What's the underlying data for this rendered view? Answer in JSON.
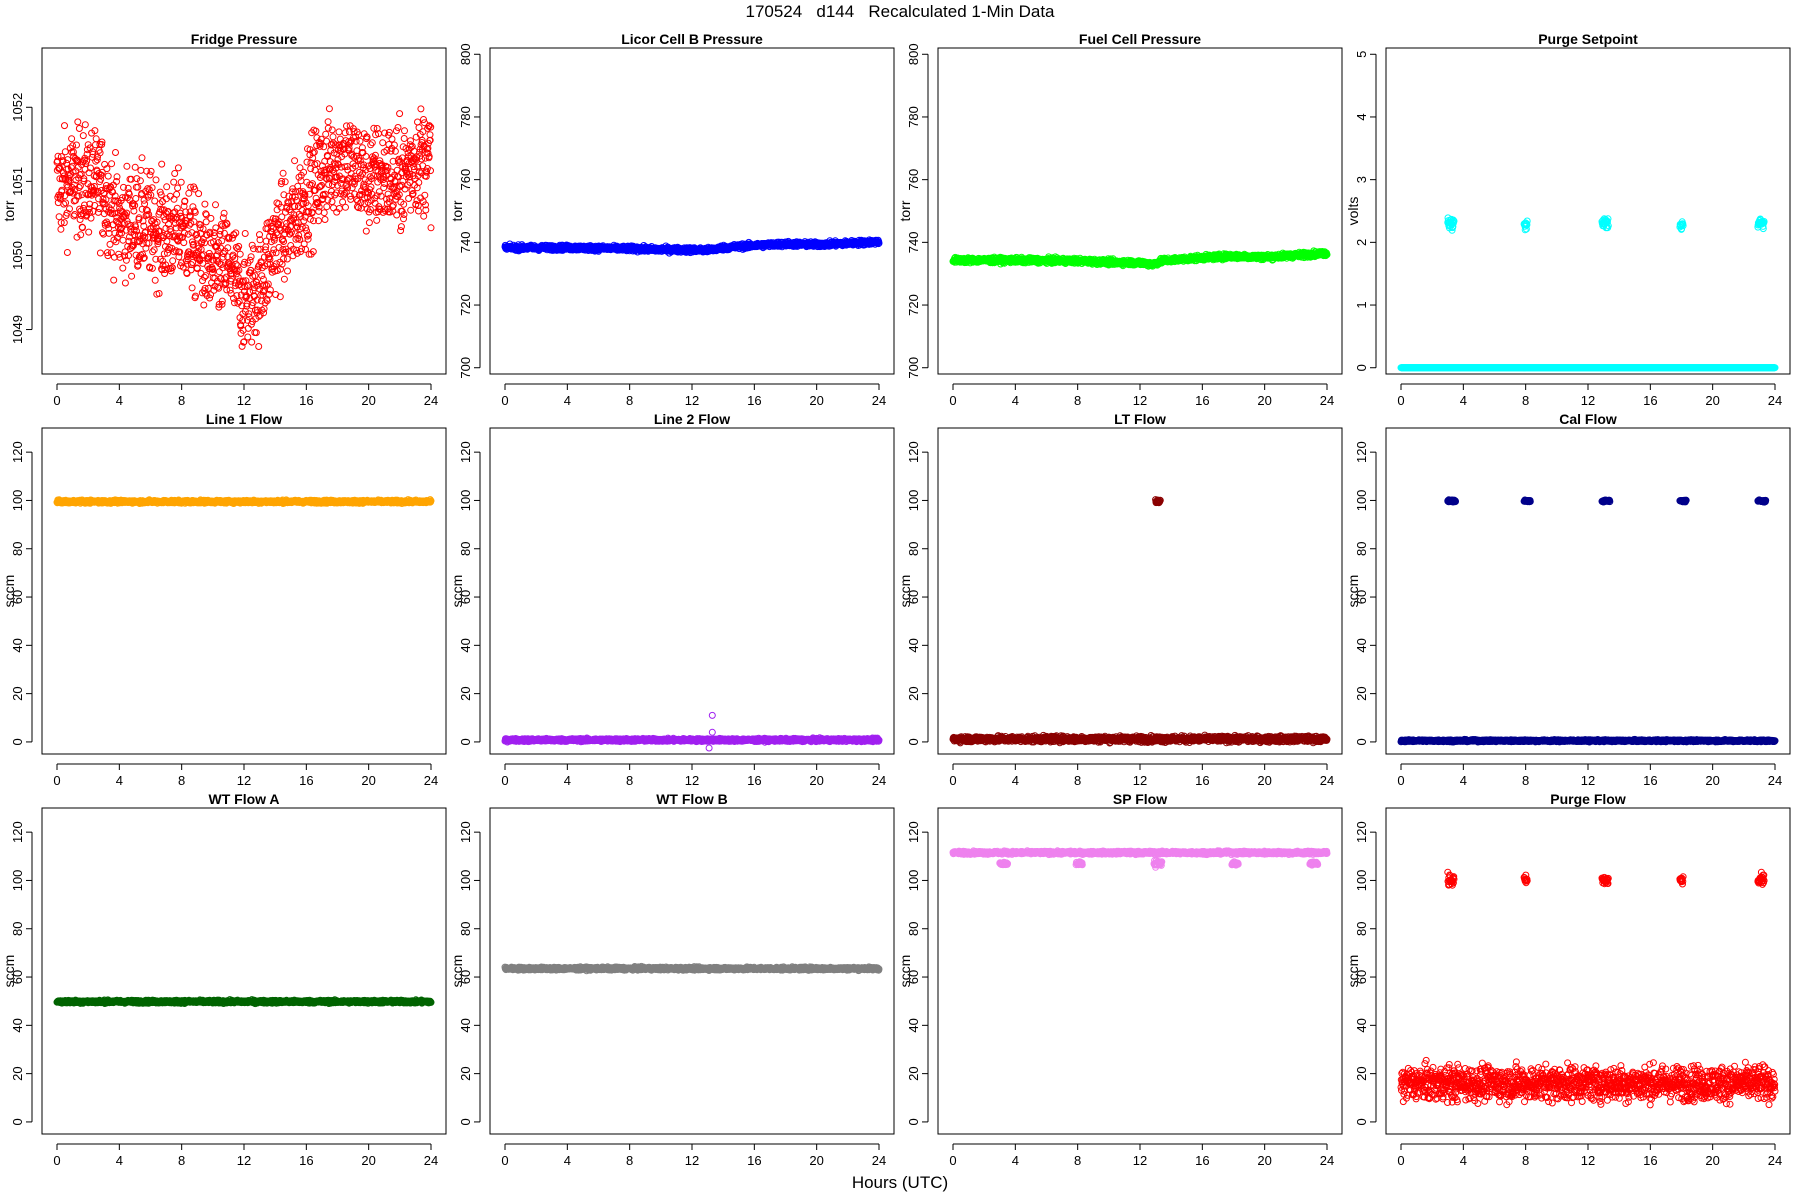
{
  "figure": {
    "title": "170524   d144   Recalculated 1-Min Data",
    "xlabel": "Hours (UTC)"
  },
  "chart_data": [
    {
      "type": "scatter",
      "title": "Fridge Pressure",
      "ylabel": "torr",
      "color": "#ff0000",
      "marker": "open-circle",
      "xlim": [
        0,
        24
      ],
      "xticks": [
        0,
        4,
        8,
        12,
        16,
        20,
        24
      ],
      "ylim": [
        1048.4,
        1052.8
      ],
      "yticks": [
        1049,
        1050,
        1051,
        1052
      ],
      "series": [
        {
          "x": [
            0,
            1,
            2,
            3,
            4,
            5,
            6,
            7,
            8,
            9,
            10,
            11,
            12,
            13,
            14,
            15,
            16,
            17,
            18,
            19,
            20,
            21,
            22,
            23,
            24
          ],
          "y": [
            1050.9,
            1051.0,
            1051.0,
            1050.9,
            1050.4,
            1050.5,
            1050.4,
            1050.3,
            1050.4,
            1050.1,
            1049.8,
            1049.9,
            1049.4,
            1049.6,
            1050.2,
            1050.4,
            1050.8,
            1051.1,
            1051.3,
            1051.2,
            1051.0,
            1051.1,
            1051.0,
            1051.3,
            1051.3
          ],
          "spread": 0.35
        }
      ]
    },
    {
      "type": "scatter",
      "title": "Licor Cell B Pressure",
      "ylabel": "torr",
      "color": "#0000ff",
      "marker": "open-circle",
      "xlim": [
        0,
        24
      ],
      "xticks": [
        0,
        4,
        8,
        12,
        16,
        20,
        24
      ],
      "ylim": [
        698,
        802
      ],
      "yticks": [
        700,
        720,
        740,
        760,
        780,
        800
      ],
      "series": [
        {
          "x": [
            0,
            4,
            8,
            10,
            12,
            13,
            14,
            16,
            18,
            20,
            22,
            24
          ],
          "y": [
            738.3,
            738.3,
            738.0,
            737.7,
            737.6,
            737.5,
            738.3,
            739.0,
            739.5,
            739.3,
            739.7,
            740.2
          ],
          "spread": 0.4
        }
      ]
    },
    {
      "type": "scatter",
      "title": "Fuel Cell Pressure",
      "ylabel": "torr",
      "color": "#00ff00",
      "marker": "open-circle",
      "xlim": [
        0,
        24
      ],
      "xticks": [
        0,
        4,
        8,
        12,
        16,
        20,
        24
      ],
      "ylim": [
        698,
        802
      ],
      "yticks": [
        700,
        720,
        740,
        760,
        780,
        800
      ],
      "series": [
        {
          "x": [
            0,
            4,
            8,
            10,
            12,
            12.8,
            13.5,
            16,
            18,
            20,
            22,
            24
          ],
          "y": [
            734.3,
            734.3,
            734.1,
            733.7,
            733.5,
            733.0,
            734.2,
            735.1,
            735.6,
            735.3,
            735.9,
            736.6
          ],
          "spread": 0.4
        }
      ]
    },
    {
      "type": "scatter",
      "title": "Purge Setpoint",
      "ylabel": "volts",
      "color": "#00ffff",
      "marker": "open-circle",
      "xlim": [
        0,
        24
      ],
      "xticks": [
        0,
        4,
        8,
        12,
        16,
        20,
        24
      ],
      "ylim": [
        -0.1,
        5.1
      ],
      "yticks": [
        0,
        1,
        2,
        3,
        4,
        5
      ],
      "series": [
        {
          "x": [
            0,
            24
          ],
          "y": [
            0.0,
            0.0
          ],
          "spread": 0.0
        },
        {
          "x": [
            3.0,
            3.4
          ],
          "y": [
            2.3,
            2.3
          ],
          "spread": 0.05
        },
        {
          "x": [
            7.9,
            8.1
          ],
          "y": [
            2.27,
            2.27
          ],
          "spread": 0.04
        },
        {
          "x": [
            12.9,
            13.3
          ],
          "y": [
            2.3,
            2.3
          ],
          "spread": 0.05
        },
        {
          "x": [
            17.9,
            18.1
          ],
          "y": [
            2.28,
            2.28
          ],
          "spread": 0.04
        },
        {
          "x": [
            22.9,
            23.3
          ],
          "y": [
            2.3,
            2.3
          ],
          "spread": 0.05
        }
      ]
    },
    {
      "type": "scatter",
      "title": "Line 1 Flow",
      "ylabel": "sccm",
      "color": "#ffa500",
      "marker": "open-circle",
      "xlim": [
        0,
        24
      ],
      "xticks": [
        0,
        4,
        8,
        12,
        16,
        20,
        24
      ],
      "ylim": [
        -5,
        130
      ],
      "yticks": [
        0,
        20,
        40,
        60,
        80,
        100,
        120
      ],
      "series": [
        {
          "x": [
            0,
            24
          ],
          "y": [
            99.5,
            99.5
          ],
          "spread": 0.3
        }
      ]
    },
    {
      "type": "scatter",
      "title": "Line 2 Flow",
      "ylabel": "sccm",
      "color": "#a020f0",
      "marker": "open-circle",
      "xlim": [
        0,
        24
      ],
      "xticks": [
        0,
        4,
        8,
        12,
        16,
        20,
        24
      ],
      "ylim": [
        -5,
        130
      ],
      "yticks": [
        0,
        20,
        40,
        60,
        80,
        100,
        120
      ],
      "series": [
        {
          "x": [
            0,
            24
          ],
          "y": [
            0.8,
            0.8
          ],
          "spread": 0.3
        },
        {
          "x": [
            13.3,
            13.3
          ],
          "y": [
            11.0,
            11.0
          ],
          "spread": 0.0
        },
        {
          "x": [
            13.3,
            13.3
          ],
          "y": [
            4.0,
            4.0
          ],
          "spread": 0.0
        },
        {
          "x": [
            13.1,
            13.1
          ],
          "y": [
            -2.5,
            -2.5
          ],
          "spread": 0.0
        }
      ]
    },
    {
      "type": "scatter",
      "title": "LT Flow",
      "ylabel": "sccm",
      "color": "#8b0000",
      "marker": "open-circle",
      "xlim": [
        0,
        24
      ],
      "xticks": [
        0,
        4,
        8,
        12,
        16,
        20,
        24
      ],
      "ylim": [
        -5,
        130
      ],
      "yticks": [
        0,
        20,
        40,
        60,
        80,
        100,
        120
      ],
      "series": [
        {
          "x": [
            0,
            24
          ],
          "y": [
            1.2,
            1.2
          ],
          "spread": 0.6
        },
        {
          "x": [
            13.0,
            13.3
          ],
          "y": [
            99.5,
            99.5
          ],
          "spread": 0.4
        }
      ]
    },
    {
      "type": "scatter",
      "title": "Cal Flow",
      "ylabel": "sccm",
      "color": "#00008b",
      "marker": "open-circle",
      "xlim": [
        0,
        24
      ],
      "xticks": [
        0,
        4,
        8,
        12,
        16,
        20,
        24
      ],
      "ylim": [
        -5,
        130
      ],
      "yticks": [
        0,
        20,
        40,
        60,
        80,
        100,
        120
      ],
      "series": [
        {
          "x": [
            0,
            24
          ],
          "y": [
            0.5,
            0.5
          ],
          "spread": 0.2
        },
        {
          "x": [
            3.0,
            3.5
          ],
          "y": [
            99.8,
            99.8
          ],
          "spread": 0.2
        },
        {
          "x": [
            7.9,
            8.3
          ],
          "y": [
            99.8,
            99.8
          ],
          "spread": 0.2
        },
        {
          "x": [
            12.9,
            13.4
          ],
          "y": [
            99.8,
            99.8
          ],
          "spread": 0.2
        },
        {
          "x": [
            17.9,
            18.3
          ],
          "y": [
            99.8,
            99.8
          ],
          "spread": 0.2
        },
        {
          "x": [
            22.9,
            23.4
          ],
          "y": [
            99.8,
            99.8
          ],
          "spread": 0.2
        }
      ]
    },
    {
      "type": "scatter",
      "title": "WT Flow A",
      "ylabel": "sccm",
      "color": "#006400",
      "marker": "open-circle",
      "xlim": [
        0,
        24
      ],
      "xticks": [
        0,
        4,
        8,
        12,
        16,
        20,
        24
      ],
      "ylim": [
        -5,
        130
      ],
      "yticks": [
        0,
        20,
        40,
        60,
        80,
        100,
        120
      ],
      "series": [
        {
          "x": [
            0,
            24
          ],
          "y": [
            49.8,
            49.8
          ],
          "spread": 0.3
        }
      ]
    },
    {
      "type": "scatter",
      "title": "WT Flow B",
      "ylabel": "sccm",
      "color": "#808080",
      "marker": "open-circle",
      "xlim": [
        0,
        24
      ],
      "xticks": [
        0,
        4,
        8,
        12,
        16,
        20,
        24
      ],
      "ylim": [
        -5,
        130
      ],
      "yticks": [
        0,
        20,
        40,
        60,
        80,
        100,
        120
      ],
      "series": [
        {
          "x": [
            0,
            24
          ],
          "y": [
            63.5,
            63.5
          ],
          "spread": 0.3
        }
      ]
    },
    {
      "type": "scatter",
      "title": "SP Flow",
      "ylabel": "sccm",
      "color": "#ee82ee",
      "marker": "open-circle",
      "xlim": [
        0,
        24
      ],
      "xticks": [
        0,
        4,
        8,
        12,
        16,
        20,
        24
      ],
      "ylim": [
        -5,
        130
      ],
      "yticks": [
        0,
        20,
        40,
        60,
        80,
        100,
        120
      ],
      "series": [
        {
          "x": [
            0,
            24
          ],
          "y": [
            111.5,
            111.5
          ],
          "spread": 0.3
        },
        {
          "x": [
            3.0,
            3.5
          ],
          "y": [
            107.0,
            107.0
          ],
          "spread": 0.3
        },
        {
          "x": [
            7.9,
            8.3
          ],
          "y": [
            107.0,
            107.0
          ],
          "spread": 0.3
        },
        {
          "x": [
            12.9,
            13.4
          ],
          "y": [
            107.0,
            107.0
          ],
          "spread": 0.6
        },
        {
          "x": [
            17.9,
            18.3
          ],
          "y": [
            107.0,
            107.0
          ],
          "spread": 0.3
        },
        {
          "x": [
            22.9,
            23.4
          ],
          "y": [
            107.0,
            107.0
          ],
          "spread": 0.3
        }
      ]
    },
    {
      "type": "scatter",
      "title": "Purge Flow",
      "ylabel": "sccm",
      "color": "#ff0000",
      "marker": "open-circle",
      "xlim": [
        0,
        24
      ],
      "xticks": [
        0,
        4,
        8,
        12,
        16,
        20,
        24
      ],
      "ylim": [
        -5,
        130
      ],
      "yticks": [
        0,
        20,
        40,
        60,
        80,
        100,
        120
      ],
      "series": [
        {
          "x": [
            0,
            24
          ],
          "y": [
            16.0,
            16.0
          ],
          "spread": 3.5
        },
        {
          "x": [
            3.0,
            3.4
          ],
          "y": [
            100.0,
            100.0
          ],
          "spread": 1.2
        },
        {
          "x": [
            7.9,
            8.1
          ],
          "y": [
            100.0,
            100.0
          ],
          "spread": 1.0
        },
        {
          "x": [
            12.9,
            13.3
          ],
          "y": [
            100.0,
            100.0
          ],
          "spread": 1.0
        },
        {
          "x": [
            17.9,
            18.1
          ],
          "y": [
            100.0,
            100.0
          ],
          "spread": 1.0
        },
        {
          "x": [
            22.9,
            23.3
          ],
          "y": [
            100.0,
            100.0
          ],
          "spread": 1.2
        }
      ]
    }
  ]
}
